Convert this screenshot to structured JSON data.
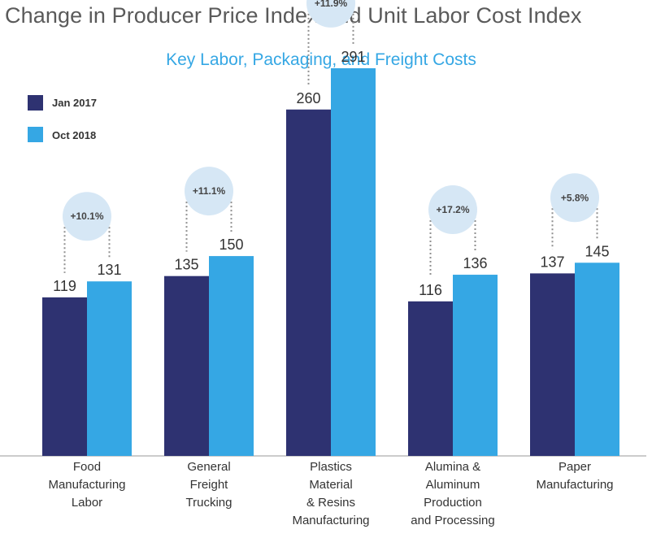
{
  "title": "Change in Producer Price Index and Unit Labor Cost Index",
  "chart_data": {
    "type": "bar",
    "title": "Change in Producer Price Index and Unit Labor Cost Index",
    "subtitle": "Key Labor, Packaging, and Freight Costs",
    "categories": [
      [
        "Food",
        "Manufacturing",
        "Labor"
      ],
      [
        "General",
        "Freight",
        "Trucking"
      ],
      [
        "Plastics",
        "Material",
        "& Resins",
        "Manufacturing"
      ],
      [
        "Alumina &",
        "Aluminum",
        "Production",
        "and Processing"
      ],
      [
        "Paper",
        "Manufacturing"
      ]
    ],
    "series": [
      {
        "name": "Jan 2017",
        "values": [
          119,
          135,
          260,
          116,
          137
        ]
      },
      {
        "name": "Oct 2018",
        "values": [
          131,
          150,
          291,
          136,
          145
        ]
      }
    ],
    "changes": [
      "+10.1%",
      "+11.1%",
      "+11.9%",
      "+17.2%",
      "+5.8%"
    ],
    "ylim": [
      0,
      330
    ],
    "grid": false,
    "legend": "top-left"
  },
  "colors": {
    "series1": "#2e3271",
    "series2": "#35a7e4",
    "bubble": "#d6e7f5",
    "dots": "#8f8f8f",
    "axis": "#9a9a9a"
  }
}
